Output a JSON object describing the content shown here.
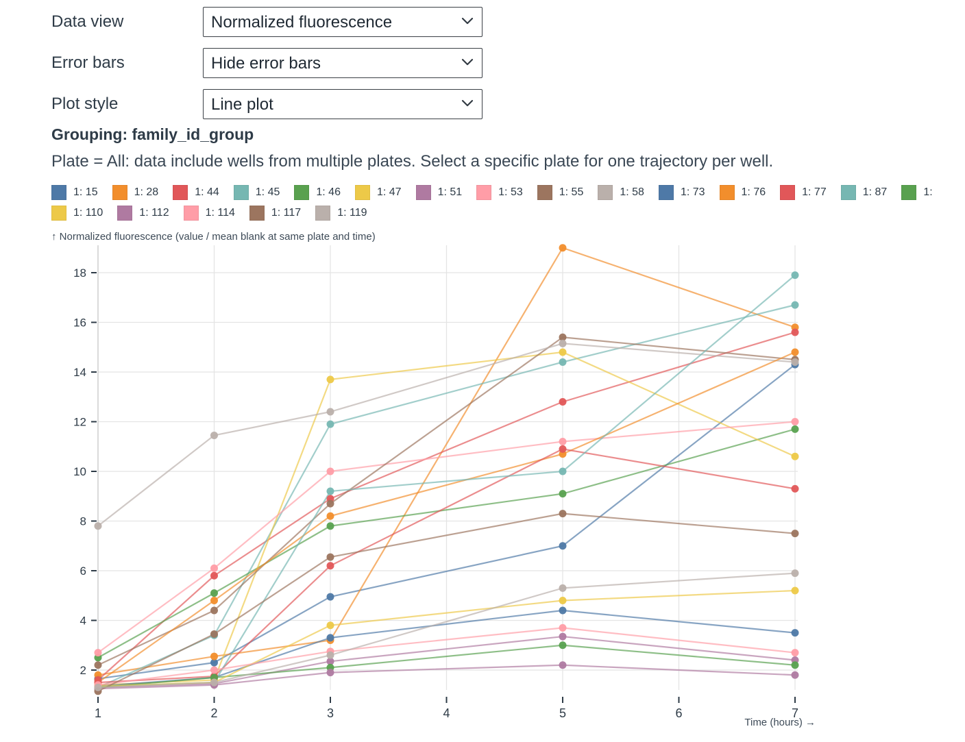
{
  "controls": [
    {
      "id": "data-view",
      "label": "Data view",
      "value": "Normalized fluorescence"
    },
    {
      "id": "error-bars",
      "label": "Error bars",
      "value": "Hide error bars"
    },
    {
      "id": "plot-style",
      "label": "Plot style",
      "value": "Line plot"
    }
  ],
  "grouping_heading": "Grouping: family_id_group",
  "plate_note": "Plate = All: data include wells from multiple plates. Select a specific plate for one trajectory per well.",
  "legend": {
    "row1": [
      {
        "label": "1: 15",
        "color": "#4e79a7"
      },
      {
        "label": "1: 28",
        "color": "#f28e2c"
      },
      {
        "label": "1: 44",
        "color": "#e15759"
      },
      {
        "label": "1: 45",
        "color": "#76b7b2"
      },
      {
        "label": "1: 46",
        "color": "#59a14f"
      },
      {
        "label": "1: 47",
        "color": "#edc948"
      },
      {
        "label": "1: 51",
        "color": "#af7aa1"
      },
      {
        "label": "1: 53",
        "color": "#ff9da7"
      },
      {
        "label": "1: 55",
        "color": "#9c755f"
      },
      {
        "label": "1: 58",
        "color": "#bab0ab"
      },
      {
        "label": "1: 73",
        "color": "#4e79a7"
      },
      {
        "label": "1: 76",
        "color": "#f28e2c"
      },
      {
        "label": "1: 77",
        "color": "#e15759"
      },
      {
        "label": "1: 87",
        "color": "#76b7b2"
      },
      {
        "label": "1:",
        "color": "#59a14f"
      }
    ],
    "row2": [
      {
        "label": "1: 110",
        "color": "#edc948"
      },
      {
        "label": "1: 112",
        "color": "#af7aa1"
      },
      {
        "label": "1: 114",
        "color": "#ff9da7"
      },
      {
        "label": "1: 117",
        "color": "#9c755f"
      },
      {
        "label": "1: 119",
        "color": "#bab0ab"
      }
    ]
  },
  "chart_data": {
    "type": "line",
    "x": [
      1,
      2,
      3,
      5,
      7
    ],
    "x_ticks": [
      1,
      2,
      3,
      4,
      5,
      6,
      7
    ],
    "y_ticks": [
      2,
      4,
      6,
      8,
      10,
      12,
      14,
      16,
      18
    ],
    "x_domain": [
      1,
      7
    ],
    "y_domain": [
      1.1,
      19.1
    ],
    "grid": true,
    "xlabel": "Time (hours) →",
    "ylabel": "↑ Normalized fluorescence (value / mean blank at same plate and time)",
    "series": [
      {
        "name": "1: 15",
        "color": "#4e79a7",
        "values": [
          1.65,
          2.3,
          4.95,
          7.0,
          14.3
        ]
      },
      {
        "name": "1: 28",
        "color": "#f28e2c",
        "values": [
          1.8,
          2.55,
          3.2,
          19.0,
          15.8
        ]
      },
      {
        "name": "1: 44",
        "color": "#e15759",
        "values": [
          1.6,
          5.8,
          8.9,
          12.8,
          15.6
        ]
      },
      {
        "name": "1: 45",
        "color": "#76b7b2",
        "values": [
          1.3,
          3.4,
          11.9,
          14.4,
          16.7
        ]
      },
      {
        "name": "1: 46",
        "color": "#59a14f",
        "values": [
          2.5,
          5.1,
          7.8,
          9.1,
          11.7
        ]
      },
      {
        "name": "1: 47",
        "color": "#edc948",
        "values": [
          1.4,
          1.6,
          13.7,
          14.8,
          10.6
        ]
      },
      {
        "name": "1: 51",
        "color": "#af7aa1",
        "values": [
          1.3,
          1.45,
          2.35,
          3.35,
          2.4
        ]
      },
      {
        "name": "1: 53",
        "color": "#ff9da7",
        "values": [
          2.7,
          6.1,
          10.0,
          11.2,
          12.0
        ]
      },
      {
        "name": "1: 55",
        "color": "#9c755f",
        "values": [
          2.2,
          4.4,
          8.7,
          15.4,
          14.5
        ]
      },
      {
        "name": "1: 58",
        "color": "#bab0ab",
        "values": [
          7.8,
          11.45,
          12.4,
          15.15,
          14.4
        ]
      },
      {
        "name": "1: 73",
        "color": "#4e79a7",
        "values": [
          1.35,
          1.7,
          3.3,
          4.4,
          3.5
        ]
      },
      {
        "name": "1: 76",
        "color": "#f28e2c",
        "values": [
          1.5,
          4.8,
          8.2,
          10.7,
          14.8
        ]
      },
      {
        "name": "1: 77",
        "color": "#e15759",
        "values": [
          1.5,
          1.75,
          6.2,
          10.9,
          9.3
        ]
      },
      {
        "name": "1: 87",
        "color": "#76b7b2",
        "values": [
          1.35,
          1.5,
          9.2,
          10.0,
          17.9
        ]
      },
      {
        "name": "1:",
        "color": "#59a14f",
        "values": [
          1.3,
          1.7,
          2.1,
          3.0,
          2.2
        ]
      },
      {
        "name": "1: 110",
        "color": "#edc948",
        "values": [
          1.35,
          1.5,
          3.8,
          4.8,
          5.2
        ]
      },
      {
        "name": "1: 112",
        "color": "#af7aa1",
        "values": [
          1.25,
          1.4,
          1.9,
          2.2,
          1.8
        ]
      },
      {
        "name": "1: 114",
        "color": "#ff9da7",
        "values": [
          1.4,
          2.0,
          2.75,
          3.7,
          2.7
        ]
      },
      {
        "name": "1: 117",
        "color": "#9c755f",
        "values": [
          1.15,
          3.45,
          6.55,
          8.3,
          7.5
        ]
      },
      {
        "name": "1: 119",
        "color": "#bab0ab",
        "values": [
          1.3,
          1.5,
          2.6,
          5.3,
          5.9
        ]
      }
    ]
  }
}
